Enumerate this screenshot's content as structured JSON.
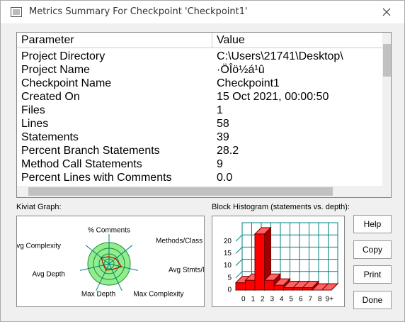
{
  "window": {
    "title": "Metrics Summary For Checkpoint 'Checkpoint1'"
  },
  "table": {
    "columns": [
      "Parameter",
      "Value"
    ],
    "rows": [
      [
        "Project Directory",
        "C:\\Users\\21741\\Desktop\\"
      ],
      [
        "Project Name",
        "·ÖÎö½á¹û"
      ],
      [
        "Checkpoint Name",
        "Checkpoint1"
      ],
      [
        "Created On",
        "15 Oct 2021, 00:00:50"
      ],
      [
        "Files",
        "1"
      ],
      [
        "Lines",
        "58"
      ],
      [
        "Statements",
        "39"
      ],
      [
        "Percent Branch Statements",
        "28.2"
      ],
      [
        "Method Call Statements",
        "9"
      ],
      [
        "Percent Lines with Comments",
        "0.0"
      ]
    ]
  },
  "kiviat": {
    "label": "Kiviat Graph:",
    "axes": [
      "% Comments",
      "Methods/Class",
      "Avg Stmts/Method",
      "Max Complexity",
      "Max Depth",
      "Avg Depth",
      "Avg Complexity"
    ]
  },
  "histogram": {
    "type": "bar",
    "title": "Block Histogram (statements vs. depth):",
    "categories": [
      "0",
      "1",
      "2",
      "3",
      "4",
      "5",
      "6",
      "7",
      "8",
      "9+"
    ],
    "values": [
      3,
      4,
      23,
      4,
      2,
      1,
      1,
      1,
      0,
      0
    ],
    "color": "#ff0000",
    "ylim": [
      0,
      25
    ],
    "yticks": [
      0,
      5,
      10,
      15,
      20
    ],
    "grid": true
  },
  "buttons": [
    "Help",
    "Copy",
    "Print",
    "Done"
  ]
}
